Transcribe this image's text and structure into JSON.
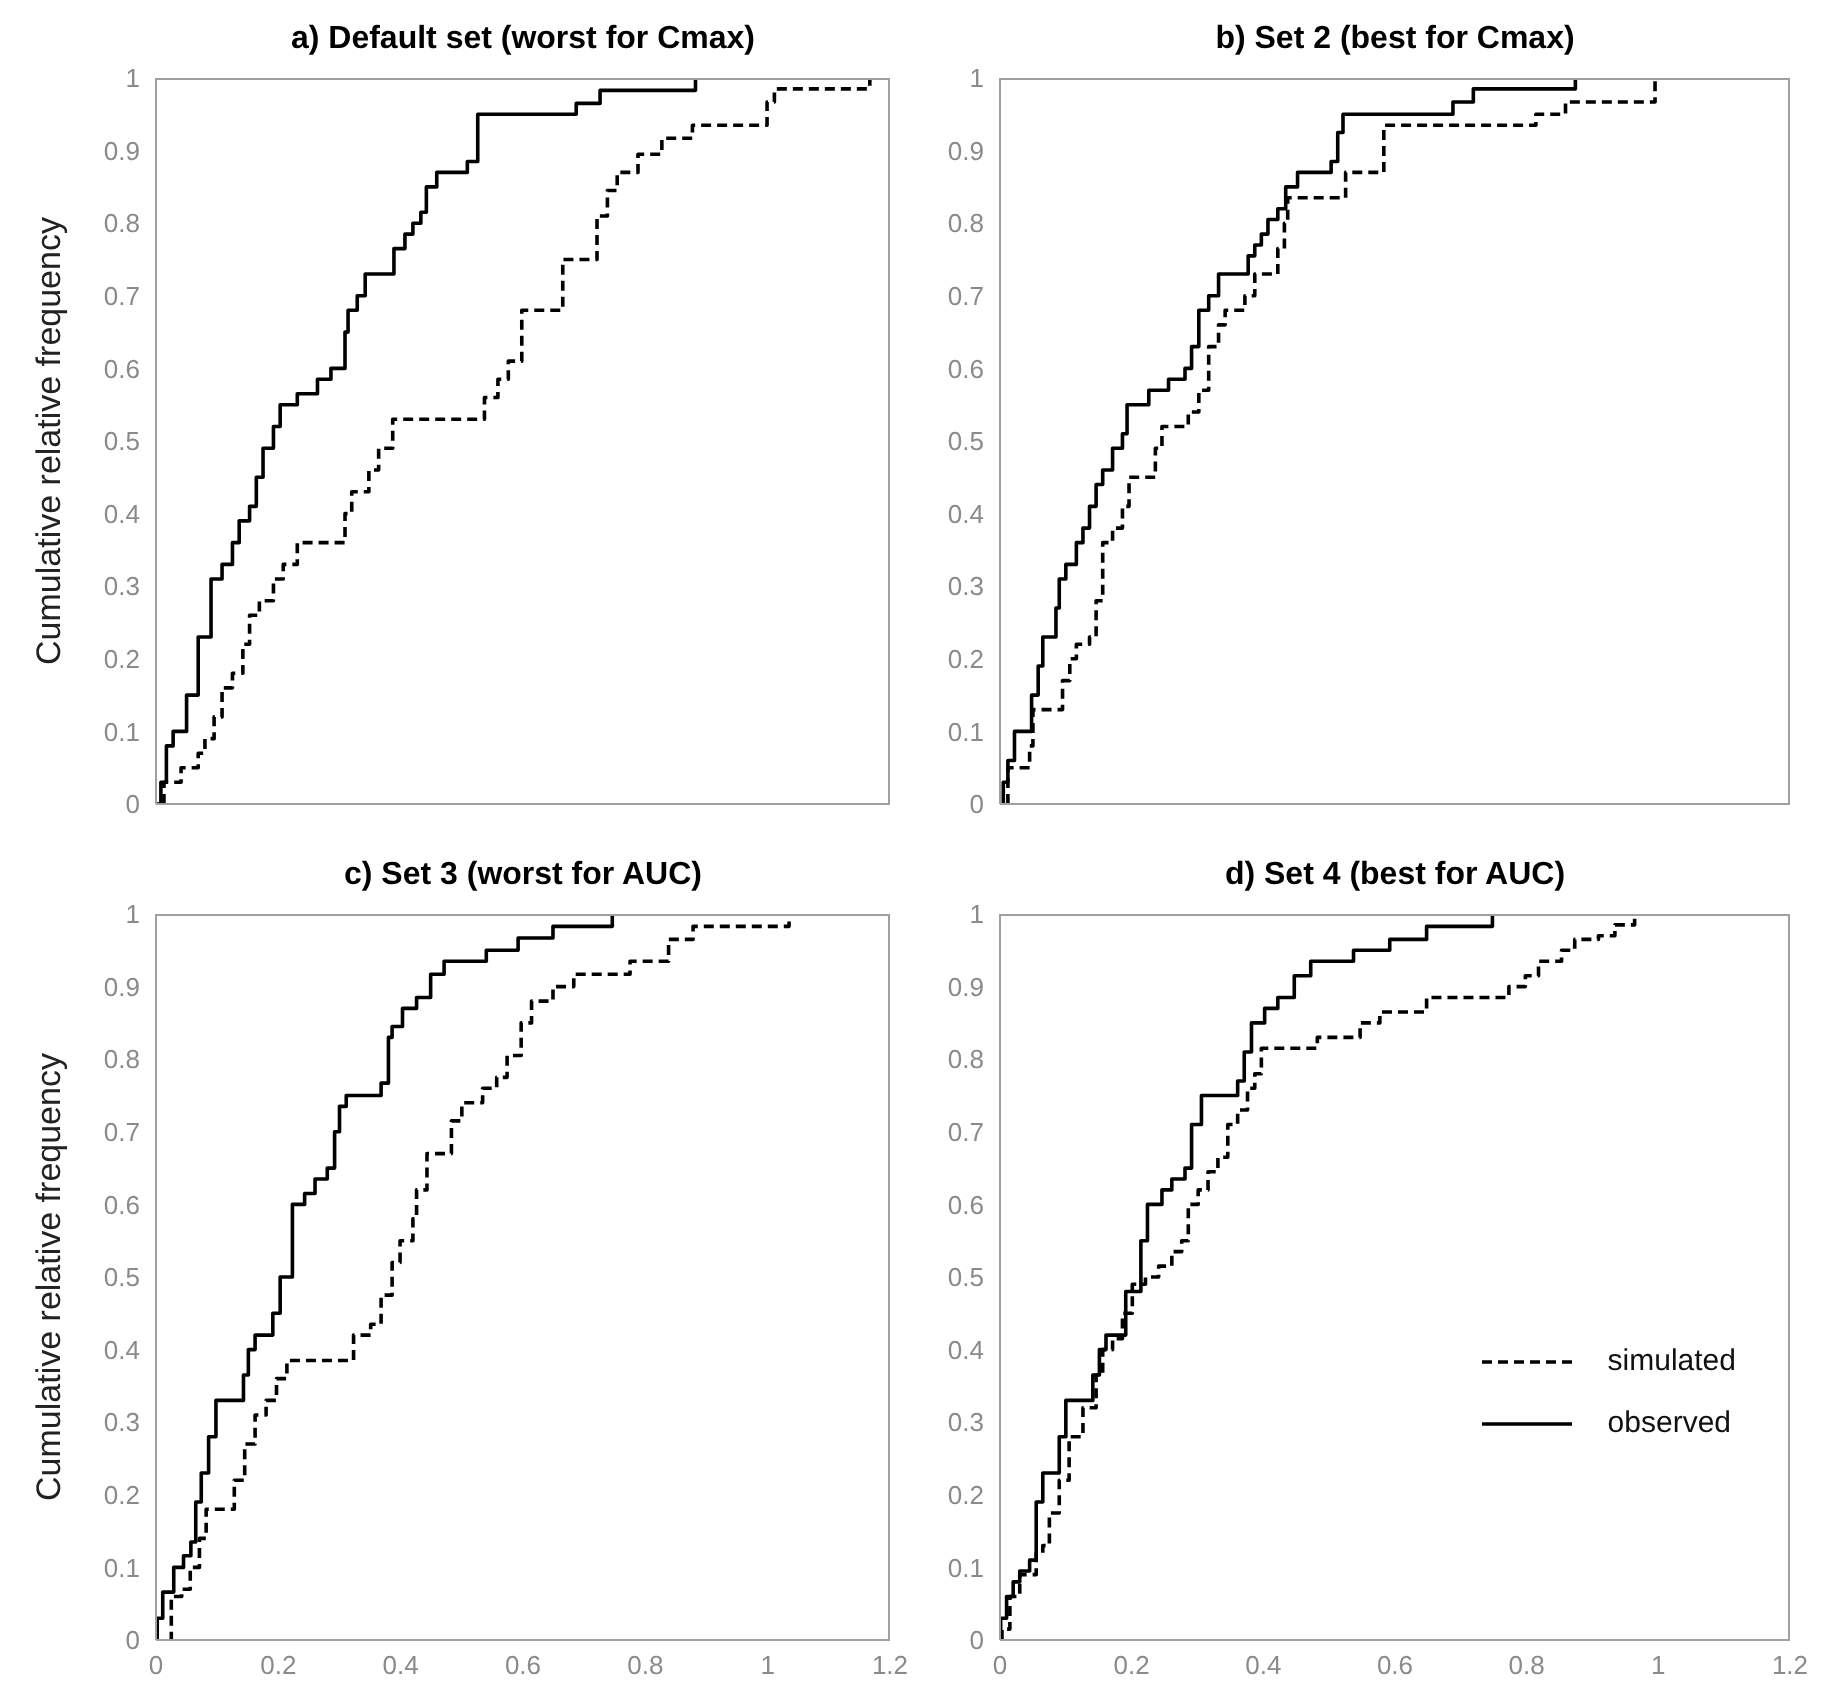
{
  "chart_data": [
    {
      "type": "step",
      "title": "a) Default set (worst for Cmax)",
      "ylabel": "Cumulative  relative frequency",
      "xlim": [
        0,
        1.2
      ],
      "xticks": [
        0,
        0.2,
        0.4,
        0.6,
        0.8,
        1,
        1.2
      ],
      "ylim": [
        0,
        1
      ],
      "yticks": [
        0,
        0.1,
        0.2,
        0.3,
        0.4,
        0.5,
        0.6,
        0.7,
        0.8,
        0.9,
        1
      ],
      "tick_labels": "y",
      "series": [
        {
          "color": "#000000",
          "line_style": "dashed",
          "x": [
            0.013,
            0.013,
            0.041,
            0.069,
            0.08,
            0.095,
            0.108,
            0.125,
            0.142,
            0.153,
            0.169,
            0.192,
            0.208,
            0.231,
            0.309,
            0.32,
            0.348,
            0.364,
            0.387,
            0.537,
            0.559,
            0.576,
            0.598,
            0.665,
            0.721,
            0.738,
            0.754,
            0.788,
            0.827,
            0.877,
            0.999,
            1.011,
            1.167
          ],
          "values": [
            0,
            0.03,
            0.05,
            0.07,
            0.09,
            0.12,
            0.16,
            0.18,
            0.22,
            0.26,
            0.28,
            0.31,
            0.33,
            0.36,
            0.4,
            0.43,
            0.46,
            0.49,
            0.53,
            0.56,
            0.585,
            0.61,
            0.68,
            0.75,
            0.81,
            0.845,
            0.87,
            0.895,
            0.917,
            0.935,
            0.967,
            0.985,
            1
          ]
        },
        {
          "color": "#000000",
          "line_style": "solid",
          "x": [
            0,
            0.008,
            0.017,
            0.028,
            0.05,
            0.069,
            0.09,
            0.108,
            0.125,
            0.136,
            0.153,
            0.164,
            0.175,
            0.192,
            0.203,
            0.231,
            0.264,
            0.286,
            0.309,
            0.314,
            0.329,
            0.342,
            0.389,
            0.407,
            0.42,
            0.433,
            0.442,
            0.459,
            0.509,
            0.526,
            0.687,
            0.726,
            0.882
          ],
          "values": [
            0,
            0.03,
            0.08,
            0.1,
            0.15,
            0.23,
            0.31,
            0.33,
            0.36,
            0.39,
            0.41,
            0.45,
            0.49,
            0.52,
            0.55,
            0.565,
            0.585,
            0.6,
            0.65,
            0.68,
            0.7,
            0.73,
            0.765,
            0.785,
            0.8,
            0.815,
            0.85,
            0.87,
            0.885,
            0.95,
            0.965,
            0.983,
            1
          ]
        }
      ]
    },
    {
      "type": "step",
      "title": "b) Set 2 (best for Cmax)",
      "xlim": [
        0,
        1.2
      ],
      "xticks": [
        0,
        0.2,
        0.4,
        0.6,
        0.8,
        1,
        1.2
      ],
      "ylim": [
        0,
        1
      ],
      "yticks": [
        0,
        0.1,
        0.2,
        0.3,
        0.4,
        0.5,
        0.6,
        0.7,
        0.8,
        0.9,
        1
      ],
      "tick_labels": "y",
      "series": [
        {
          "color": "#000000",
          "line_style": "dashed",
          "x": [
            0.012,
            0.012,
            0.045,
            0.05,
            0.095,
            0.106,
            0.116,
            0.136,
            0.146,
            0.156,
            0.171,
            0.186,
            0.196,
            0.236,
            0.246,
            0.286,
            0.302,
            0.317,
            0.332,
            0.342,
            0.372,
            0.387,
            0.422,
            0.432,
            0.437,
            0.525,
            0.583,
            0.814,
            0.859,
            0.995
          ],
          "values": [
            0,
            0.05,
            0.08,
            0.13,
            0.17,
            0.2,
            0.22,
            0.23,
            0.28,
            0.36,
            0.38,
            0.41,
            0.45,
            0.49,
            0.52,
            0.54,
            0.57,
            0.63,
            0.66,
            0.68,
            0.7,
            0.73,
            0.765,
            0.8,
            0.835,
            0.87,
            0.935,
            0.95,
            0.967,
            1
          ]
        },
        {
          "color": "#000000",
          "line_style": "solid",
          "x": [
            0.005,
            0.005,
            0.012,
            0.022,
            0.048,
            0.058,
            0.065,
            0.085,
            0.09,
            0.1,
            0.116,
            0.126,
            0.136,
            0.146,
            0.156,
            0.171,
            0.186,
            0.193,
            0.226,
            0.256,
            0.281,
            0.291,
            0.302,
            0.317,
            0.332,
            0.377,
            0.387,
            0.397,
            0.407,
            0.422,
            0.434,
            0.452,
            0.503,
            0.513,
            0.521,
            0.688,
            0.719,
            0.874
          ],
          "values": [
            0,
            0.03,
            0.06,
            0.1,
            0.15,
            0.19,
            0.23,
            0.27,
            0.31,
            0.33,
            0.36,
            0.38,
            0.41,
            0.44,
            0.46,
            0.49,
            0.51,
            0.55,
            0.57,
            0.585,
            0.6,
            0.63,
            0.68,
            0.7,
            0.73,
            0.755,
            0.77,
            0.785,
            0.805,
            0.82,
            0.85,
            0.87,
            0.885,
            0.925,
            0.95,
            0.967,
            0.985,
            1
          ]
        }
      ]
    },
    {
      "type": "step",
      "title": "c) Set 3 (worst for AUC)",
      "ylabel": "Cumulative  relative frequency",
      "xlim": [
        0,
        1.2
      ],
      "xticks": [
        0,
        0.2,
        0.4,
        0.6,
        0.8,
        1,
        1.2
      ],
      "ylim": [
        0,
        1
      ],
      "yticks": [
        0,
        0.1,
        0.2,
        0.3,
        0.4,
        0.5,
        0.6,
        0.7,
        0.8,
        0.9,
        1
      ],
      "series": [
        {
          "color": "#000000",
          "line_style": "dashed",
          "x": [
            0.022,
            0.025,
            0.042,
            0.056,
            0.071,
            0.082,
            0.128,
            0.145,
            0.162,
            0.18,
            0.197,
            0.214,
            0.323,
            0.351,
            0.368,
            0.386,
            0.399,
            0.42,
            0.426,
            0.443,
            0.483,
            0.5,
            0.534,
            0.557,
            0.574,
            0.597,
            0.614,
            0.649,
            0.683,
            0.775,
            0.838,
            0.878,
            1.035
          ],
          "values": [
            0,
            0.06,
            0.07,
            0.1,
            0.14,
            0.18,
            0.22,
            0.27,
            0.31,
            0.33,
            0.36,
            0.385,
            0.42,
            0.435,
            0.475,
            0.52,
            0.55,
            0.58,
            0.62,
            0.67,
            0.715,
            0.74,
            0.76,
            0.775,
            0.805,
            0.85,
            0.88,
            0.9,
            0.917,
            0.935,
            0.965,
            0.983,
            0.99
          ]
        },
        {
          "color": "#000000",
          "line_style": "solid",
          "x": [
            0,
            0.002,
            0.011,
            0.029,
            0.045,
            0.057,
            0.065,
            0.074,
            0.086,
            0.098,
            0.143,
            0.151,
            0.162,
            0.191,
            0.203,
            0.223,
            0.243,
            0.26,
            0.28,
            0.292,
            0.3,
            0.311,
            0.368,
            0.38,
            0.386,
            0.403,
            0.426,
            0.449,
            0.471,
            0.54,
            0.592,
            0.649,
            0.746
          ],
          "values": [
            0,
            0.03,
            0.066,
            0.1,
            0.116,
            0.135,
            0.19,
            0.23,
            0.28,
            0.33,
            0.365,
            0.4,
            0.42,
            0.45,
            0.5,
            0.6,
            0.615,
            0.635,
            0.65,
            0.7,
            0.735,
            0.75,
            0.767,
            0.83,
            0.845,
            0.87,
            0.885,
            0.917,
            0.935,
            0.95,
            0.967,
            0.983,
            1
          ]
        }
      ]
    },
    {
      "type": "step",
      "title": "d) Set 4 (best for AUC)",
      "xlim": [
        0,
        1.2
      ],
      "xticks": [
        0,
        0.2,
        0.4,
        0.6,
        0.8,
        1,
        1.2
      ],
      "ylim": [
        0,
        1
      ],
      "yticks": [
        0,
        0.1,
        0.2,
        0.3,
        0.4,
        0.5,
        0.6,
        0.7,
        0.8,
        0.9,
        1
      ],
      "legend": "bottom right",
      "series": [
        {
          "name": "simulated",
          "color": "#000000",
          "line_style": "dashed",
          "x": [
            0.003,
            0.003,
            0.015,
            0.03,
            0.055,
            0.065,
            0.075,
            0.09,
            0.105,
            0.126,
            0.146,
            0.156,
            0.171,
            0.186,
            0.201,
            0.221,
            0.241,
            0.261,
            0.276,
            0.286,
            0.301,
            0.316,
            0.331,
            0.346,
            0.361,
            0.376,
            0.387,
            0.397,
            0.482,
            0.547,
            0.577,
            0.648,
            0.773,
            0.798,
            0.818,
            0.853,
            0.873,
            0.909,
            0.934,
            0.964
          ],
          "values": [
            0,
            0.015,
            0.06,
            0.09,
            0.12,
            0.13,
            0.175,
            0.22,
            0.28,
            0.32,
            0.365,
            0.4,
            0.415,
            0.45,
            0.49,
            0.5,
            0.515,
            0.535,
            0.55,
            0.6,
            0.62,
            0.645,
            0.665,
            0.71,
            0.73,
            0.76,
            0.78,
            0.815,
            0.83,
            0.85,
            0.865,
            0.885,
            0.9,
            0.915,
            0.935,
            0.95,
            0.965,
            0.97,
            0.985,
            1
          ]
        },
        {
          "name": "observed",
          "color": "#000000",
          "line_style": "solid",
          "x": [
            0,
            0.001,
            0.01,
            0.02,
            0.03,
            0.045,
            0.055,
            0.065,
            0.09,
            0.1,
            0.141,
            0.151,
            0.161,
            0.191,
            0.214,
            0.224,
            0.246,
            0.261,
            0.281,
            0.291,
            0.306,
            0.361,
            0.371,
            0.382,
            0.402,
            0.422,
            0.447,
            0.472,
            0.537,
            0.592,
            0.648,
            0.748
          ],
          "values": [
            0,
            0.03,
            0.06,
            0.08,
            0.095,
            0.11,
            0.19,
            0.23,
            0.28,
            0.33,
            0.365,
            0.4,
            0.42,
            0.48,
            0.55,
            0.6,
            0.62,
            0.635,
            0.65,
            0.71,
            0.75,
            0.77,
            0.81,
            0.85,
            0.87,
            0.885,
            0.915,
            0.935,
            0.95,
            0.965,
            0.983,
            1
          ]
        }
      ]
    }
  ]
}
